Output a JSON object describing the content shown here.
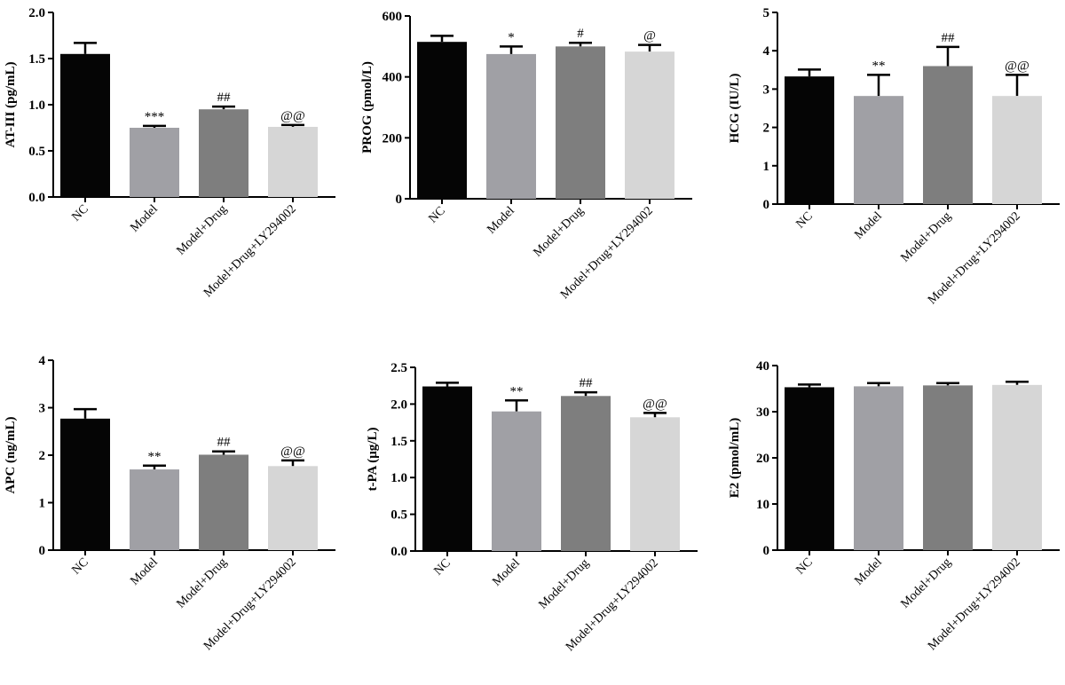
{
  "chart_data": [
    {
      "type": "bar",
      "categories": [
        "NC",
        "Model",
        "Model+Drug",
        "Model+Drug+LY294002"
      ],
      "values": [
        1.55,
        0.75,
        0.95,
        0.76
      ],
      "errors": [
        0.12,
        0.02,
        0.03,
        0.02
      ],
      "annotations": [
        "",
        "***",
        "##",
        "@@"
      ],
      "ylabel": "AT-III (pg/mL)",
      "ylim": [
        0,
        2.0
      ],
      "yticks": [
        "0.0",
        "0.5",
        "1.0",
        "1.5",
        "2.0"
      ],
      "colors": [
        "#050505",
        "#a0a0a5",
        "#7e7e7e",
        "#d6d6d6"
      ]
    },
    {
      "type": "bar",
      "categories": [
        "NC",
        "Model",
        "Model+Drug",
        "Model+Drug+LY294002"
      ],
      "values": [
        515,
        475,
        500,
        483
      ],
      "errors": [
        20,
        25,
        12,
        22
      ],
      "annotations": [
        "",
        "*",
        "#",
        "@"
      ],
      "ylabel": "PROG (pmol/L)",
      "ylim": [
        0,
        600
      ],
      "yticks": [
        "0",
        "200",
        "400",
        "600"
      ],
      "colors": [
        "#050505",
        "#a0a0a5",
        "#7e7e7e",
        "#d6d6d6"
      ]
    },
    {
      "type": "bar",
      "categories": [
        "NC",
        "Model",
        "Model+Drug",
        "Model+Drug+LY294002"
      ],
      "values": [
        3.33,
        2.82,
        3.6,
        2.82
      ],
      "errors": [
        0.18,
        0.55,
        0.5,
        0.55
      ],
      "annotations": [
        "",
        "**",
        "##",
        "@@"
      ],
      "ylabel": "HCG (IU/L)",
      "ylim": [
        0,
        5
      ],
      "yticks": [
        "0",
        "1",
        "2",
        "3",
        "4",
        "5"
      ],
      "colors": [
        "#050505",
        "#a0a0a5",
        "#7e7e7e",
        "#d6d6d6"
      ]
    },
    {
      "type": "bar",
      "categories": [
        "NC",
        "Model",
        "Model+Drug",
        "Model+Drug+LY294002"
      ],
      "values": [
        2.77,
        1.7,
        2.01,
        1.77
      ],
      "errors": [
        0.2,
        0.08,
        0.07,
        0.12
      ],
      "annotations": [
        "",
        "**",
        "##",
        "@@"
      ],
      "ylabel": "APC (ng/mL)",
      "ylim": [
        0,
        4
      ],
      "yticks": [
        "0",
        "1",
        "2",
        "3",
        "4"
      ],
      "colors": [
        "#050505",
        "#a0a0a5",
        "#7e7e7e",
        "#d6d6d6"
      ]
    },
    {
      "type": "bar",
      "categories": [
        "NC",
        "Model",
        "Model+Drug",
        "Model+Drug+LY294002"
      ],
      "values": [
        2.24,
        1.9,
        2.11,
        1.82
      ],
      "errors": [
        0.05,
        0.15,
        0.05,
        0.06
      ],
      "annotations": [
        "",
        "**",
        "##",
        "@@"
      ],
      "ylabel": "t-PA (μg/L)",
      "ylim": [
        0,
        2.5
      ],
      "yticks": [
        "0.0",
        "0.5",
        "1.0",
        "1.5",
        "2.0",
        "2.5"
      ],
      "colors": [
        "#050505",
        "#a0a0a5",
        "#7e7e7e",
        "#d6d6d6"
      ]
    },
    {
      "type": "bar",
      "categories": [
        "NC",
        "Model",
        "Model+Drug",
        "Model+Drug+LY294002"
      ],
      "values": [
        35.3,
        35.5,
        35.7,
        35.8
      ],
      "errors": [
        0.6,
        0.7,
        0.5,
        0.7
      ],
      "annotations": [
        "",
        "",
        "",
        ""
      ],
      "ylabel": "E2 (pmol/mL)",
      "ylim": [
        0,
        40
      ],
      "yticks": [
        "0",
        "10",
        "20",
        "30",
        "40"
      ],
      "colors": [
        "#050505",
        "#a0a0a5",
        "#7e7e7e",
        "#d6d6d6"
      ]
    }
  ]
}
